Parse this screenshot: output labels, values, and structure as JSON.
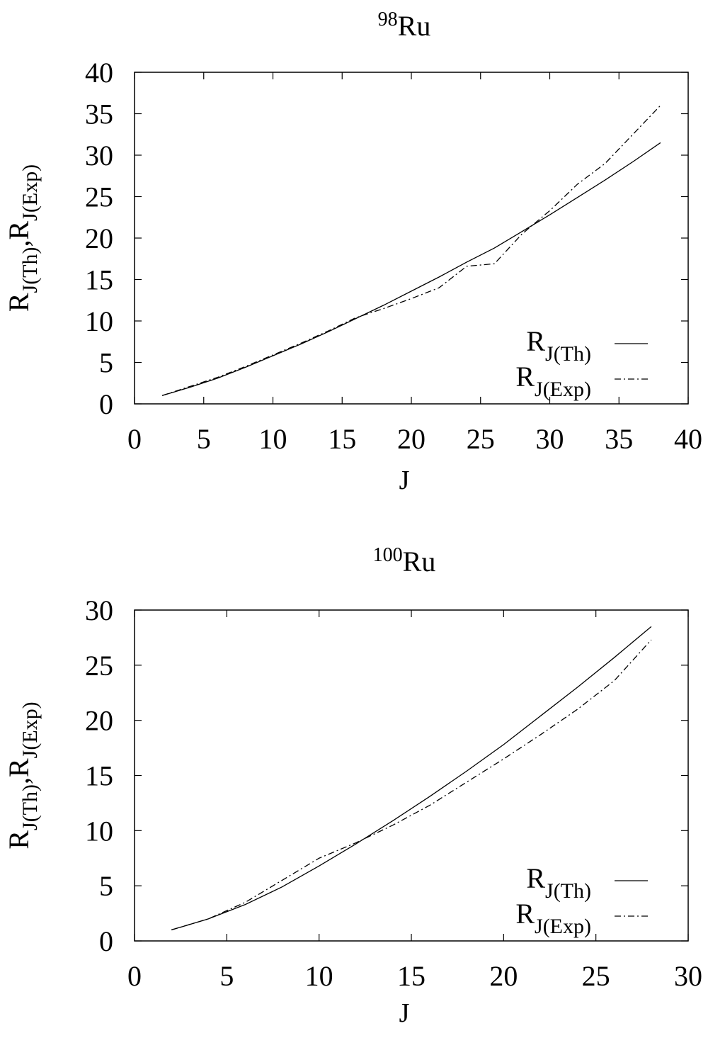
{
  "chart_data": [
    {
      "type": "line",
      "title_superscript": "98",
      "title": "Ru",
      "xlabel": "J",
      "ylabel": [
        "R",
        "J(Th)",
        ",R",
        "J(Exp)"
      ],
      "x": [
        2,
        4,
        6,
        8,
        10,
        12,
        14,
        16,
        18,
        20,
        22,
        24,
        26,
        28,
        30,
        32,
        34,
        36,
        38
      ],
      "series": [
        {
          "name": "R",
          "subscript": "J(Th)",
          "color": "#000000",
          "style": "solid",
          "values": [
            1.0,
            2.0,
            3.1,
            4.4,
            5.8,
            7.2,
            8.7,
            10.3,
            11.9,
            13.6,
            15.3,
            17.1,
            18.8,
            20.8,
            22.8,
            24.9,
            27.0,
            29.2,
            31.5
          ]
        },
        {
          "name": "R",
          "subscript": "J(Exp)",
          "color": "#000000",
          "style": "dashdot",
          "values": [
            1.0,
            2.1,
            3.2,
            4.5,
            5.9,
            7.3,
            8.8,
            10.4,
            11.5,
            12.7,
            14.0,
            16.6,
            16.9,
            20.5,
            23.3,
            26.5,
            29.0,
            32.5,
            36.0
          ]
        }
      ],
      "xlim": [
        0,
        40
      ],
      "xticks": [
        0,
        5,
        10,
        15,
        20,
        25,
        30,
        35,
        40
      ],
      "ylim": [
        0,
        40
      ],
      "yticks": [
        0,
        5,
        10,
        15,
        20,
        25,
        30,
        35,
        40
      ],
      "legend": "lower right"
    },
    {
      "type": "line",
      "title_superscript": "100",
      "title": "Ru",
      "xlabel": "J",
      "ylabel": [
        "R",
        "J(Th)",
        ",R",
        "J(Exp)"
      ],
      "x": [
        2,
        4,
        6,
        8,
        10,
        12,
        14,
        16,
        18,
        20,
        22,
        24,
        26,
        28
      ],
      "series": [
        {
          "name": "R",
          "subscript": "J(Th)",
          "color": "#000000",
          "style": "solid",
          "values": [
            1.0,
            2.0,
            3.3,
            4.9,
            6.8,
            8.8,
            10.9,
            13.1,
            15.4,
            17.8,
            20.4,
            23.0,
            25.7,
            28.5
          ]
        },
        {
          "name": "R",
          "subscript": "J(Exp)",
          "color": "#000000",
          "style": "dashdot",
          "values": [
            1.0,
            2.0,
            3.5,
            5.5,
            7.5,
            8.9,
            10.5,
            12.3,
            14.4,
            16.5,
            18.7,
            21.0,
            23.6,
            27.3
          ]
        }
      ],
      "xlim": [
        0,
        30
      ],
      "xticks": [
        0,
        5,
        10,
        15,
        20,
        25,
        30
      ],
      "ylim": [
        0,
        30
      ],
      "yticks": [
        0,
        5,
        10,
        15,
        20,
        25,
        30
      ],
      "legend": "lower right"
    }
  ]
}
